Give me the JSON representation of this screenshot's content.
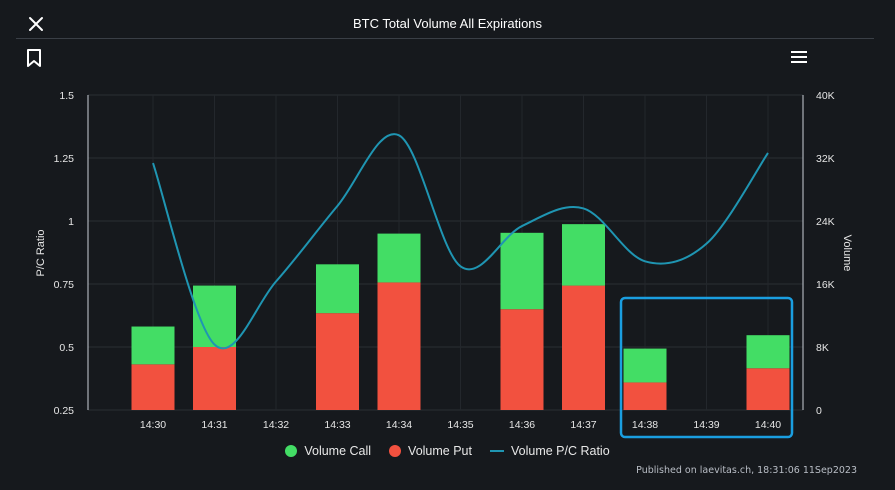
{
  "header": {
    "title": "BTC Total Volume All Expirations"
  },
  "icons": {
    "close": "close-icon",
    "bookmark": "bookmark-icon",
    "menu": "hamburger-menu-icon"
  },
  "colors": {
    "call": "#43dd65",
    "put": "#f2513f",
    "ratio": "#1f95b2",
    "highlight": "#1a9ee0",
    "background": "#16191d"
  },
  "legend": {
    "call": "Volume Call",
    "put": "Volume Put",
    "ratio": "Volume P/C Ratio"
  },
  "footer": {
    "text": "Published on laevitas.ch, 18:31:06 11Sep2023"
  },
  "chart_data": {
    "type": "bar",
    "stacked": true,
    "title": "BTC Total Volume All Expirations",
    "x_ticks": [
      "14:30",
      "14:31",
      "14:32",
      "14:33",
      "14:34",
      "14:35",
      "14:36",
      "14:37",
      "14:38",
      "14:39",
      "14:40"
    ],
    "bar_categories": [
      "14:30",
      "14:31",
      "14:33",
      "14:34",
      "14:36",
      "14:37",
      "14:38",
      "14:40"
    ],
    "series": [
      {
        "name": "Volume Put",
        "values": [
          5800,
          8000,
          12300,
          16200,
          12800,
          15800,
          3500,
          5300
        ]
      },
      {
        "name": "Volume Call",
        "values": [
          4800,
          7800,
          6200,
          6200,
          9700,
          7800,
          4300,
          4200
        ]
      }
    ],
    "ratio_series": {
      "name": "Volume P/C Ratio",
      "x": [
        0,
        1,
        2,
        3,
        4,
        5,
        6,
        7,
        8,
        9,
        10
      ],
      "values": [
        1.23,
        0.51,
        0.76,
        1.06,
        1.34,
        0.82,
        0.98,
        1.05,
        0.84,
        0.91,
        1.27
      ]
    },
    "y_left": {
      "label": "P/C Ratio",
      "ticks": [
        "1.5",
        "1.25",
        "1",
        "0.75",
        "0.5",
        "0.25"
      ],
      "range": [
        0.25,
        1.5
      ]
    },
    "y_right": {
      "label": "Volume",
      "ticks": [
        "40K",
        "32K",
        "24K",
        "16K",
        "8K",
        "0"
      ],
      "range": [
        0,
        40000
      ]
    },
    "annotation": {
      "type": "highlight-box",
      "covers": [
        "14:38",
        "14:39",
        "14:40"
      ]
    }
  }
}
